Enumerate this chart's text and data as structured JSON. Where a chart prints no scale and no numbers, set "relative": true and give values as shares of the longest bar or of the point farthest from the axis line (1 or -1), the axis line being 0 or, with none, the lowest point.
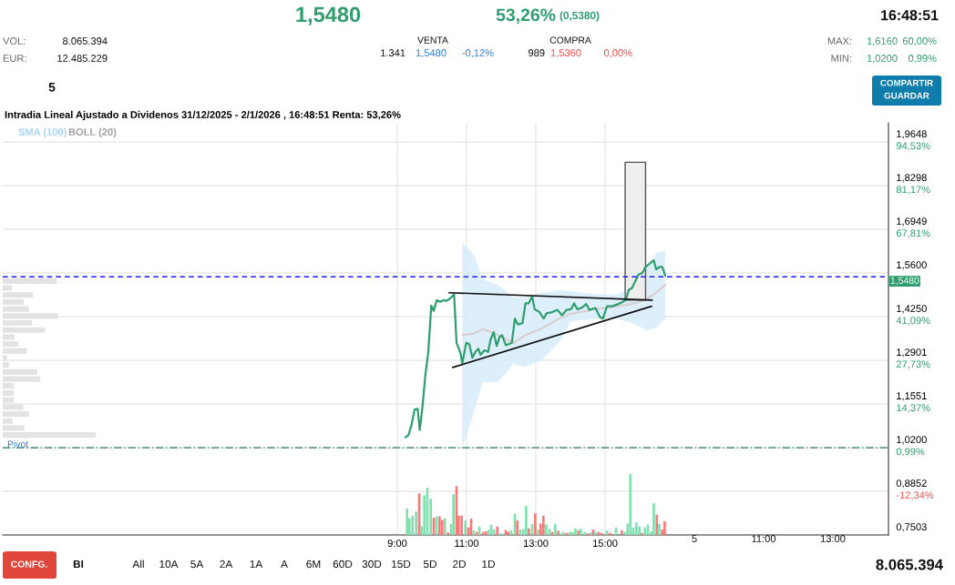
{
  "chart_data": [
    {
      "type": "line",
      "title": "Intradia Lineal Ajustado a Dividenos 31/12/2025 - 2/1/2026 , 16:48:51 Renta: 53,26%",
      "xlim": [
        -2.39,
        23.18
      ],
      "xticks": [
        {
          "value": 9,
          "label": null
        },
        {
          "value": 11,
          "label": null
        },
        {
          "value": 13,
          "label": null
        },
        {
          "value": 15,
          "label": null
        }
      ],
      "ylim": [
        0.7503,
        2.024
      ],
      "yticks": [
        {
          "value": 0.7503,
          "label": "0,7503"
        },
        {
          "value": 0.8852,
          "label": "0,8852"
        },
        {
          "value": 1.02,
          "label": "1,0200"
        },
        {
          "value": 1.1551,
          "label": "1,1551"
        },
        {
          "value": 1.2901,
          "label": "1,2901"
        },
        {
          "value": 1.425,
          "label": "1,4250"
        },
        {
          "value": 1.56,
          "label": "1,5600"
        },
        {
          "value": 1.6949,
          "label": "1,6949"
        },
        {
          "value": 1.8298,
          "label": "1,8298"
        },
        {
          "value": 1.9648,
          "label": "1,9648"
        }
      ],
      "y2lim": [
        -25.71,
        100.39
      ],
      "y2ticks": [
        {
          "value": -12.34,
          "label": "-12,34%"
        },
        {
          "value": 0.99,
          "label": "0,99%"
        },
        {
          "value": 14.37,
          "label": "14,37%"
        },
        {
          "value": 27.73,
          "label": "27,73%"
        },
        {
          "value": 41.09,
          "label": "41,09%"
        },
        {
          "value": 67.81,
          "label": "67,81%"
        },
        {
          "value": 81.17,
          "label": "81,17%"
        },
        {
          "value": 94.53,
          "label": "94,53%"
        }
      ],
      "tick_labels": "y",
      "grid": true,
      "series": [
        {
          "type": "line",
          "color": "#d8d0d0",
          "x": [
            10.877,
            11.211,
            11.474,
            11.912,
            12.351,
            12.702,
            13.14,
            13.667,
            14.018,
            14.719,
            15.333,
            15.86,
            16.211,
            16.474,
            16.737
          ],
          "values": [
            1.368,
            1.373,
            1.387,
            1.368,
            1.344,
            1.368,
            1.387,
            1.419,
            1.434,
            1.448,
            1.457,
            1.466,
            1.48,
            1.499,
            1.523
          ],
          "upper": [
            1.654,
            1.616,
            1.541,
            1.523,
            1.485,
            1.485,
            1.499,
            1.506,
            1.504,
            1.494,
            1.494,
            1.518,
            1.579,
            1.621,
            1.63
          ],
          "lower": [
            1.016,
            1.129,
            1.223,
            1.223,
            1.279,
            1.27,
            1.288,
            1.344,
            1.41,
            1.419,
            1.419,
            1.401,
            1.382,
            1.391,
            1.419
          ]
        },
        {
          "type": "bar",
          "color": "#eeeeee",
          "x": [
            15.873
          ],
          "base": [
            1.476
          ],
          "values": [
            0.426
          ]
        },
        {
          "type": "line",
          "color": "#2e9e6e",
          "x": [
            9.237,
            9.324,
            9.412,
            9.5,
            9.588,
            9.649,
            9.719,
            9.807,
            9.895,
            9.982,
            10.053,
            10.14,
            10.245,
            10.333,
            10.421,
            10.509,
            10.64,
            10.711,
            10.816,
            10.877,
            10.991,
            11.079,
            11.167,
            11.254,
            11.342,
            11.403,
            11.518,
            11.623,
            11.693,
            11.781,
            11.868,
            11.956,
            12.026,
            12.132,
            12.219,
            12.307,
            12.395,
            12.482,
            12.614,
            12.702,
            12.789,
            12.895,
            12.965,
            13.096,
            13.228,
            13.316,
            13.447,
            13.623,
            13.754,
            13.886,
            14.018,
            14.105,
            14.193,
            14.325,
            14.456,
            14.544,
            14.719,
            14.851,
            14.939,
            15.053,
            15.202,
            15.333,
            15.465,
            15.596,
            15.684,
            15.772,
            15.86,
            15.965,
            16.079,
            16.167,
            16.298,
            16.404,
            16.474,
            16.579,
            16.649,
            16.737
          ],
          "values": [
            1.052,
            1.059,
            1.091,
            1.138,
            1.14,
            1.075,
            1.138,
            1.241,
            1.316,
            1.459,
            1.443,
            1.476,
            1.471,
            1.476,
            1.474,
            1.48,
            1.494,
            1.344,
            1.316,
            1.281,
            1.344,
            1.34,
            1.298,
            1.316,
            1.326,
            1.307,
            1.321,
            1.316,
            1.354,
            1.377,
            1.335,
            1.363,
            1.368,
            1.337,
            1.34,
            1.344,
            1.419,
            1.401,
            1.405,
            1.466,
            1.466,
            1.487,
            1.448,
            1.44,
            1.419,
            1.436,
            1.438,
            1.446,
            1.429,
            1.446,
            1.448,
            1.466,
            1.448,
            1.452,
            1.464,
            1.446,
            1.452,
            1.424,
            1.419,
            1.457,
            1.457,
            1.462,
            1.468,
            1.476,
            1.508,
            1.513,
            1.532,
            1.555,
            1.56,
            1.579,
            1.59,
            1.599,
            1.571,
            1.579,
            1.579,
            1.551
          ]
        },
        {
          "type": "line",
          "color": "#111111",
          "x": [
            10.49,
            16.36
          ],
          "values": [
            1.499,
            1.476
          ]
        },
        {
          "type": "line",
          "color": "#111111",
          "x": [
            10.596,
            16.342
          ],
          "values": [
            1.268,
            1.457
          ]
        }
      ],
      "ref_lines": [
        {
          "axis": "y",
          "value": 1.548,
          "label": "1,5480",
          "color": "#1a1aff",
          "line_style": "dashed"
        },
        {
          "axis": "y",
          "value": 1.02,
          "color": "#2e7d5b",
          "line_style": "dashdot"
        }
      ],
      "annotations": [
        "1,5480",
        "53,26%",
        "(0,5380)",
        "16:48:51",
        "VOL:",
        "8.065.394",
        "EUR:",
        "12.485.229",
        "VENTA",
        "1.341",
        "1,5480",
        "-0,12%",
        "COMPRA",
        "989",
        "1,5360",
        "0,00%",
        "MAX:",
        "1,6160",
        "60,00%",
        "MIN:",
        "1,0200",
        "0,99%",
        "5",
        "COMPARTIR",
        "GUARDAR",
        "CONFG.",
        "BI",
        "All",
        "10A",
        "5A",
        "2A",
        "1A",
        "A",
        "6M",
        "60D",
        "30D",
        "15D",
        "5D",
        "2D",
        "1D",
        "8.065.394",
        "SMA (100)",
        "BOLL (20)",
        "Pivot",
        "5",
        "11:00",
        "13:00"
      ]
    },
    {
      "type": "bar",
      "relative": true,
      "tick_labels": "x",
      "xlim": [
        -2.39,
        23.18
      ],
      "xticks": [
        {
          "value": 9,
          "label": "9:00"
        },
        {
          "value": 11,
          "label": "11:00"
        },
        {
          "value": 13,
          "label": "13:00"
        },
        {
          "value": 15,
          "label": "15:00"
        }
      ],
      "x": [
        9.281,
        9.351,
        9.439,
        9.544,
        9.632,
        9.702,
        9.781,
        9.868,
        9.965,
        10.053,
        10.132,
        10.219,
        10.298,
        10.377,
        10.465,
        10.553,
        10.623,
        10.711,
        10.772,
        10.86,
        10.965,
        11.053,
        11.132,
        11.211,
        11.298,
        11.368,
        11.474,
        11.561,
        11.632,
        11.711,
        11.789,
        11.886,
        11.965,
        12.053,
        12.132,
        12.202,
        12.289,
        12.395,
        12.465,
        12.553,
        12.64,
        12.719,
        12.798,
        12.895,
        12.982,
        13.07,
        13.14,
        13.219,
        13.298,
        13.395,
        13.474,
        13.561,
        13.649,
        13.711,
        13.798,
        13.886,
        13.974,
        14.053,
        14.14,
        14.228,
        14.298,
        14.412,
        14.5,
        14.588,
        14.658,
        14.719,
        14.807,
        14.895,
        15.053,
        15.14,
        15.316,
        15.482,
        15.57,
        15.649,
        15.728,
        15.816,
        15.904,
        15.991,
        16.061,
        16.149,
        16.237,
        16.333,
        16.404,
        16.491,
        16.561,
        16.649,
        16.719
      ],
      "values": [
        0.436,
        0.272,
        0.312,
        0.386,
        0.683,
        0.139,
        0.653,
        0.777,
        0.594,
        0.282,
        0.307,
        0.307,
        0.248,
        0.272,
        0.04,
        0.183,
        0.668,
        0.802,
        0.317,
        0.317,
        0.238,
        0.124,
        0.267,
        0.074,
        0.05,
        0.139,
        0.05,
        0.059,
        0.084,
        0.168,
        0.089,
        0.139,
        0.025,
        0.025,
        0.079,
        0.05,
        0.074,
        0.347,
        0.238,
        0.089,
        0.099,
        0.475,
        0.109,
        0.183,
        0.356,
        0.089,
        0.188,
        0.317,
        0.173,
        0.099,
        0.05,
        0.183,
        0.069,
        0.025,
        0.05,
        0.035,
        0.05,
        0.05,
        0.109,
        0.074,
        0.099,
        0.05,
        0.025,
        0.04,
        0.089,
        0.05,
        0.05,
        0.035,
        0.074,
        0.035,
        0.124,
        0.074,
        0.05,
        0.188,
        1,
        0.124,
        0.208,
        0.139,
        0.035,
        0.124,
        0.168,
        0.059,
        0.52,
        0.332,
        0.183,
        0.089,
        0.223
      ],
      "colors": [
        "#82e0b0",
        "#82e0b0",
        "#82e0b0",
        "#82e0b0",
        "#fa7a7a",
        "#82e0b0",
        "#82e0b0",
        "#82e0b0",
        "#82e0b0",
        "#fa7a7a",
        "#82e0b0",
        "#fa7a7a",
        "#fa7a7a",
        "#82e0b0",
        "#fa7a7a",
        "#82e0b0",
        "#82e0b0",
        "#fa7a7a",
        "#fa7a7a",
        "#fa7a7a",
        "#82e0b0",
        "#fa7a7a",
        "#fa7a7a",
        "#82e0b0",
        "#fa7a7a",
        "#82e0b0",
        "#fa7a7a",
        "#fa7a7a",
        "#82e0b0",
        "#82e0b0",
        "#82e0b0",
        "#fa7a7a",
        "#82e0b0",
        "#82e0b0",
        "#fa7a7a",
        "#fa7a7a",
        "#82e0b0",
        "#82e0b0",
        "#fa7a7a",
        "#82e0b0",
        "#82e0b0",
        "#82e0b0",
        "#fa7a7a",
        "#82e0b0",
        "#fa7a7a",
        "#82e0b0",
        "#fa7a7a",
        "#fa7a7a",
        "#82e0b0",
        "#82e0b0",
        "#fa7a7a",
        "#82e0b0",
        "#fa7a7a",
        "#82e0b0",
        "#82e0b0",
        "#fa7a7a",
        "#82e0b0",
        "#82e0b0",
        "#82e0b0",
        "#fa7a7a",
        "#82e0b0",
        "#82e0b0",
        "#fa7a7a",
        "#82e0b0",
        "#fa7a7a",
        "#82e0b0",
        "#fa7a7a",
        "#fa7a7a",
        "#82e0b0",
        "#fa7a7a",
        "#82e0b0",
        "#fa7a7a",
        "#82e0b0",
        "#82e0b0",
        "#82e0b0",
        "#82e0b0",
        "#82e0b0",
        "#82e0b0",
        "#fa7a7a",
        "#82e0b0",
        "#82e0b0",
        "#82e0b0",
        "#82e0b0",
        "#fa7a7a",
        "#82e0b0",
        "#fa7a7a",
        "#fa7a7a"
      ]
    },
    {
      "type": "bar",
      "relative": true,
      "orientation": "horizontal",
      "tick_labels": false,
      "color": "#e3e3e3",
      "categories": [
        null,
        null,
        null,
        null,
        null,
        null,
        null,
        null,
        null,
        null,
        null,
        null,
        null,
        null,
        null,
        null,
        null,
        null,
        null,
        null,
        null,
        null,
        null
      ],
      "values": [
        0.579,
        0.099,
        0.325,
        0.225,
        0.281,
        0.596,
        0.315,
        0.457,
        0.126,
        0.166,
        0.258,
        0.046,
        0.066,
        0.371,
        0.404,
        0.123,
        0.119,
        0.119,
        0.222,
        0.281,
        0.106,
        0.232,
        1
      ]
    }
  ]
}
